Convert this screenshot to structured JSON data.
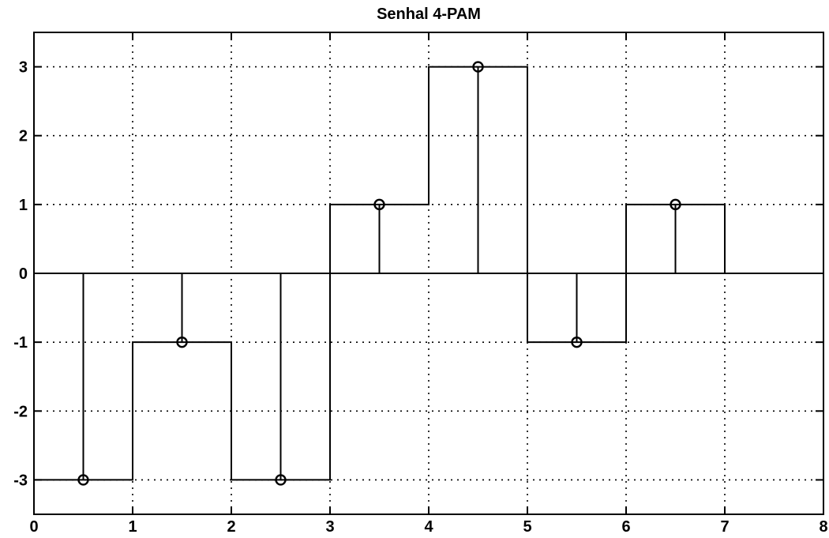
{
  "chart_data": {
    "type": "line",
    "title": "Senhal 4-PAM",
    "xlabel": "",
    "ylabel": "",
    "xlim": [
      0,
      8
    ],
    "ylim": [
      -3.5,
      3.5
    ],
    "xticks": [
      0,
      1,
      2,
      3,
      4,
      5,
      6,
      7,
      8
    ],
    "yticks": [
      -3,
      -2,
      -1,
      0,
      1,
      2,
      3
    ],
    "xtick_labels": [
      "0",
      "1",
      "2",
      "3",
      "4",
      "5",
      "6",
      "7",
      "8"
    ],
    "ytick_labels": [
      "-3",
      "-2",
      "-1",
      "0",
      "1",
      "2",
      "3"
    ],
    "grid": true,
    "series": [
      {
        "kind": "step",
        "symbol_duration": 1,
        "levels": [
          -3,
          -1,
          -3,
          1,
          3,
          -1,
          1
        ]
      },
      {
        "kind": "stem",
        "marker": "circle",
        "x": [
          0.5,
          1.5,
          2.5,
          3.5,
          4.5,
          5.5,
          6.5
        ],
        "y": [
          -3,
          -1,
          -3,
          1,
          3,
          -1,
          1
        ]
      }
    ]
  }
}
